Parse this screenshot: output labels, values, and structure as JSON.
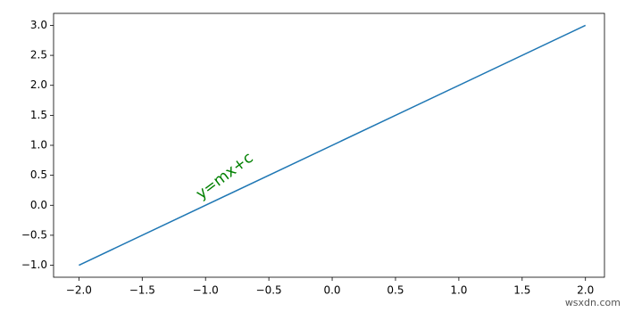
{
  "chart_data": {
    "type": "line",
    "x": [
      -2,
      2
    ],
    "series": [
      {
        "color": "#1f77b4",
        "values": [
          -1,
          3
        ]
      }
    ],
    "xlim": [
      -2.2,
      2.15
    ],
    "ylim": [
      -1.2,
      3.2
    ],
    "xticks": [
      {
        "value": -2,
        "label": "−2.0"
      },
      {
        "value": -1.5,
        "label": "−1.5"
      },
      {
        "value": -1,
        "label": "−1.0"
      },
      {
        "value": -0.5,
        "label": "−0.5"
      },
      {
        "value": 0,
        "label": "0.0"
      },
      {
        "value": 0.5,
        "label": "0.5"
      },
      {
        "value": 1,
        "label": "1.0"
      },
      {
        "value": 1.5,
        "label": "1.5"
      },
      {
        "value": 2,
        "label": "2.0"
      }
    ],
    "yticks": [
      {
        "value": -1,
        "label": "−1.0"
      },
      {
        "value": -0.5,
        "label": "−0.5"
      },
      {
        "value": 0,
        "label": "0.0"
      },
      {
        "value": 0.5,
        "label": "0.5"
      },
      {
        "value": 1,
        "label": "1.0"
      },
      {
        "value": 1.5,
        "label": "1.5"
      },
      {
        "value": 2,
        "label": "2.0"
      },
      {
        "value": 2.5,
        "label": "2.5"
      },
      {
        "value": 3,
        "label": "3.0"
      }
    ],
    "annotation": {
      "text": "y=mx+c",
      "color": "green"
    },
    "watermark": "wsxdn.com"
  }
}
